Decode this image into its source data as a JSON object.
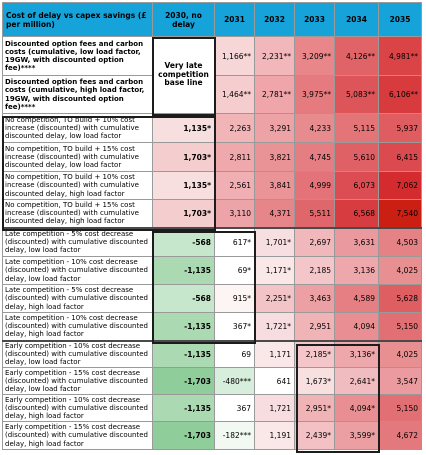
{
  "header": {
    "title": "Cost of delay vs capex savings (£ per million)",
    "columns": [
      "2030, no delay",
      "2031",
      "2032",
      "2033",
      "2034",
      "2035"
    ]
  },
  "baseline_note": "Very late competition base line",
  "rows": [
    {
      "label": "Discounted option fees and carbon costs (cumulative, low load factor, 19GW, with discounted option fee)****",
      "bold": true,
      "values": [
        null,
        "1,166**",
        "2,231**",
        "3,209**",
        "4,126**",
        "4,981**"
      ],
      "colors": [
        null,
        "#f6d6d7",
        "#f1b7ba",
        "#e8868a",
        "#e06467",
        "#db4446"
      ]
    },
    {
      "label": "Discounted option fees and carbon costs (cumulative, high load factor, 19GW, with discounted option fee)****",
      "bold": true,
      "values": [
        null,
        "1,464**",
        "2,781**",
        "3,975**",
        "5,083**",
        "6,106**"
      ],
      "colors": [
        null,
        "#f5cdcf",
        "#efa5a9",
        "#e57b7e",
        "#dd5558",
        "#d83b3d"
      ]
    },
    {
      "label": "No competition, TO build + 10% cost increase (discounted) with cumulative discounted delay, low load factor",
      "bold": false,
      "values": [
        "1,135*",
        "2,263",
        "3,291",
        "4,233",
        "5,115",
        "5,937"
      ],
      "colors": [
        "#f7dfe0",
        "#f1b5b8",
        "#eda2a6",
        "#e88b8f",
        "#e37478",
        "#df5c60"
      ]
    },
    {
      "label": "No competition, TO build + 15% cost increase (discounted) with cumulative discounted delay, low load factor",
      "bold": false,
      "values": [
        "1,703*",
        "2,811",
        "3,821",
        "4,745",
        "5,610",
        "6,415"
      ],
      "colors": [
        "#f4cdcf",
        "#efa9ad",
        "#ea9397",
        "#e47e82",
        "#df6166",
        "#da4a4f"
      ]
    },
    {
      "label": "No competition, TO build + 10% cost increase (discounted) with cumulative discounted delay, high load factor",
      "bold": false,
      "values": [
        "1,135*",
        "2,561",
        "3,841",
        "4,999",
        "6,073",
        "7,062"
      ],
      "colors": [
        "#f7dfe0",
        "#f0b0b3",
        "#ea9498",
        "#e37378",
        "#db4d52",
        "#d42b2e"
      ]
    },
    {
      "label": "No competition, TO build + 15% cost increase (discounted) with cumulative discounted delay, high load factor",
      "bold": false,
      "values": [
        "1,703*",
        "3,110",
        "4,371",
        "5,511",
        "6,568",
        "7,540"
      ],
      "colors": [
        "#f4cdcf",
        "#eda4a8",
        "#e6868a",
        "#df666a",
        "#d73d40",
        "#cc1f14"
      ]
    },
    {
      "label": "Late competition - 5% cost decrease (discounted) with cumulative discounted delay, low load factor",
      "bold": false,
      "values": [
        "-568",
        "617*",
        "1,701*",
        "2,697",
        "3,631",
        "4,503"
      ],
      "colors": [
        "#c7e7cd",
        "#ffffff",
        "#f7dee0",
        "#f1b8bb",
        "#ea9a9e",
        "#e48286"
      ]
    },
    {
      "label": "Late competition - 10% cost decrease (discounted) with cumulative discounted delay, low load factor",
      "bold": false,
      "values": [
        "-1,135",
        "69*",
        "1,171*",
        "2,185",
        "3,136",
        "4,025"
      ],
      "colors": [
        "#aad9b2",
        "#ffffff",
        "#fae8e9",
        "#f4c6c9",
        "#eea8ab",
        "#e88f92"
      ]
    },
    {
      "label": "Late competition - 5% cost decrease (discounted) with cumulative discounted delay, high load factor",
      "bold": false,
      "values": [
        "-568",
        "915*",
        "2,251*",
        "3,463",
        "4,589",
        "5,628"
      ],
      "colors": [
        "#c7e7cd",
        "#fdf4f4",
        "#f3c4c7",
        "#eca0a3",
        "#e57f83",
        "#de5e62"
      ]
    },
    {
      "label": "Late competition - 10% cost decrease (discounted) with cumulative discounted delay, high load factor",
      "bold": false,
      "values": [
        "-1,135",
        "367*",
        "1,721*",
        "2,951",
        "4,094",
        "5,150"
      ],
      "colors": [
        "#aad9b2",
        "#ffffff",
        "#f7dddf",
        "#f0b3b6",
        "#e98f93",
        "#e26f73"
      ]
    },
    {
      "label": "Early competition - 10% cost decrease (discounted) with cumulative discounted delay, low load factor",
      "bold": false,
      "values": [
        "-1,135",
        "69",
        "1,171",
        "2,185*",
        "3,136*",
        "4,025"
      ],
      "colors": [
        "#aad9b2",
        "#ffffff",
        "#fae8e9",
        "#f4c6c9",
        "#eea8ab",
        "#e88f92"
      ]
    },
    {
      "label": "Early competition - 15% cost decrease (discounted) with cumulative discounted delay, low load factor",
      "bold": false,
      "values": [
        "-1,703",
        "-480***",
        "641",
        "1,673*",
        "2,641*",
        "3,547"
      ],
      "colors": [
        "#8fcd9b",
        "#d6eedb",
        "#ffffff",
        "#f8e0e1",
        "#f1bcbf",
        "#eb9b9f"
      ]
    },
    {
      "label": "Early competition - 10% cost decrease (discounted) with cumulative discounted delay, high load factor",
      "bold": false,
      "values": [
        "-1,135",
        "367",
        "1,721",
        "2,951*",
        "4,094*",
        "5,150"
      ],
      "colors": [
        "#aad9b2",
        "#ffffff",
        "#f7dddf",
        "#f0b3b6",
        "#e98f93",
        "#e26f73"
      ]
    },
    {
      "label": "Early competition - 15% cost decrease (discounted) with cumulative discounted delay, high load factor",
      "bold": false,
      "values": [
        "-1,703",
        "-182***",
        "1,191",
        "2,439*",
        "3,599*",
        "4,672"
      ],
      "colors": [
        "#8fcd9b",
        "#f1f9f2",
        "#fae7e8",
        "#f3c1c4",
        "#ec9fa3",
        "#e4797d"
      ]
    }
  ]
}
